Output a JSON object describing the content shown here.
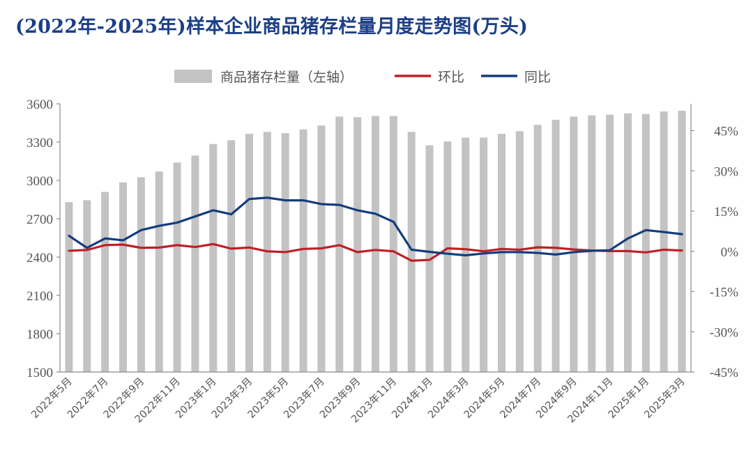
{
  "title": "(2022年-2025年)样本企业商品猪存栏量月度走势图(万头)",
  "chart_data": {
    "type": "bar",
    "categories": [
      "2022年5月",
      "2022年6月",
      "2022年7月",
      "2022年8月",
      "2022年9月",
      "2022年10月",
      "2022年11月",
      "2022年12月",
      "2023年1月",
      "2023年2月",
      "2023年3月",
      "2023年4月",
      "2023年5月",
      "2023年6月",
      "2023年7月",
      "2023年8月",
      "2023年9月",
      "2023年10月",
      "2023年11月",
      "2023年12月",
      "2024年1月",
      "2024年2月",
      "2024年3月",
      "2024年4月",
      "2024年5月",
      "2024年6月",
      "2024年7月",
      "2024年8月",
      "2024年9月",
      "2024年10月",
      "2024年11月",
      "2024年12月",
      "2025年1月",
      "2025年2月",
      "2025年3月"
    ],
    "x_tick_labels": [
      "2022年5月",
      "2022年7月",
      "2022年9月",
      "2022年11月",
      "2023年1月",
      "2023年3月",
      "2023年5月",
      "2023年7月",
      "2023年9月",
      "2023年11月",
      "2024年1月",
      "2024年3月",
      "2024年5月",
      "2024年7月",
      "2024年9月",
      "2024年11月",
      "2025年1月",
      "2025年3月"
    ],
    "series": [
      {
        "name": "商品猪存栏量（左轴）",
        "type": "bar",
        "axis": "left",
        "color": "#c3c3c3",
        "values": [
          2830,
          2845,
          2910,
          2985,
          3025,
          3070,
          3140,
          3195,
          3285,
          3315,
          3365,
          3380,
          3370,
          3400,
          3430,
          3500,
          3495,
          3505,
          3505,
          3380,
          3275,
          3305,
          3335,
          3335,
          3365,
          3385,
          3435,
          3475,
          3500,
          3510,
          3515,
          3525,
          3520,
          3540,
          3545
        ]
      },
      {
        "name": "环比",
        "type": "line",
        "axis": "right",
        "color": "#c01f25",
        "values": [
          0.2,
          0.5,
          2.3,
          2.5,
          1.3,
          1.4,
          2.3,
          1.6,
          2.7,
          1.0,
          1.4,
          0,
          -0.3,
          0.9,
          1.1,
          2.3,
          -0.3,
          0.5,
          0,
          -3.5,
          -3.2,
          1.1,
          0.8,
          0,
          0.9,
          0.6,
          1.5,
          1.3,
          0.7,
          0.3,
          0.1,
          0.1,
          -0.4,
          0.6,
          0.3
        ]
      },
      {
        "name": "同比",
        "type": "line",
        "axis": "right",
        "color": "#143c7e",
        "values": [
          5.8,
          1.3,
          4.8,
          4.1,
          7.9,
          9.5,
          10.7,
          13.0,
          15.3,
          13.8,
          19.5,
          20.0,
          19.0,
          19.0,
          17.6,
          17.3,
          15.3,
          14.0,
          11.0,
          0.6,
          -0.2,
          -0.9,
          -1.5,
          -0.8,
          -0.3,
          -0.3,
          -0.6,
          -1.2,
          -0.3,
          0.2,
          0.4,
          4.8,
          7.9,
          7.2,
          6.4
        ]
      }
    ],
    "y_left": {
      "min": 1500,
      "max": 3600,
      "step": 300,
      "ticks": [
        "1500",
        "1800",
        "2100",
        "2400",
        "2700",
        "3000",
        "3300",
        "3600"
      ]
    },
    "y_right": {
      "min": -45,
      "max": 55,
      "ticks": [
        {
          "v": -45,
          "label": "-45%"
        },
        {
          "v": -30,
          "label": "-30%"
        },
        {
          "v": -15,
          "label": "-15%"
        },
        {
          "v": 0,
          "label": "0%"
        },
        {
          "v": 15,
          "label": "15%"
        },
        {
          "v": 30,
          "label": "30%"
        },
        {
          "v": 45,
          "label": "45%"
        }
      ]
    },
    "grid": false,
    "legend_position": "top-center"
  }
}
